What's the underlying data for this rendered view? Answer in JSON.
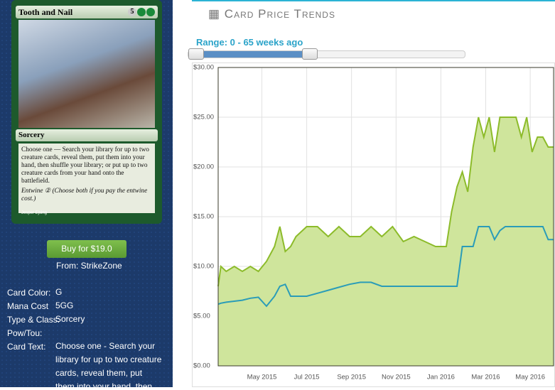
{
  "card": {
    "title": "Tooth and Nail",
    "mana_number": "5",
    "type_line": "Sorcery",
    "rules_text": "Choose one — Search your library for up to two creature cards, reveal them, put them into your hand, then shuffle your library; or put up to two creature cards from your hand onto the battlefield.",
    "entwine": "Entwine ② (Choose both if you pay the entwine cost.)",
    "artist": "Jesper Ejsing"
  },
  "buy_button": "Buy for $19.0",
  "seller": "From: StrikeZone",
  "details": [
    {
      "label": "Card Color:",
      "value": "G"
    },
    {
      "label": "Mana Cost",
      "value": "5GG"
    },
    {
      "label": "Type & Class:",
      "value": "Sorcery"
    },
    {
      "label": "Pow/Tou:",
      "value": ""
    },
    {
      "label": "Card Text:",
      "value": "Choose one - Search your library for up to two creature cards, reveal them, put them into your hand, then shuffle"
    }
  ],
  "header": {
    "title": "Card Price Trends"
  },
  "range_label": "Range: 0 - 65 weeks ago",
  "chart_data": {
    "type": "area-line",
    "x": [
      2015.17,
      2015.18,
      2015.2,
      2015.23,
      2015.26,
      2015.29,
      2015.32,
      2015.35,
      2015.38,
      2015.4,
      2015.42,
      2015.44,
      2015.46,
      2015.5,
      2015.54,
      2015.58,
      2015.62,
      2015.66,
      2015.7,
      2015.74,
      2015.78,
      2015.82,
      2015.86,
      2015.9,
      2015.94,
      2015.98,
      2016.02,
      2016.04,
      2016.06,
      2016.08,
      2016.1,
      2016.12,
      2016.14,
      2016.16,
      2016.18,
      2016.2,
      2016.22,
      2016.24,
      2016.26,
      2016.28,
      2016.3,
      2016.32,
      2016.34,
      2016.36,
      2016.38,
      2016.4,
      2016.42
    ],
    "series": [
      {
        "color": "#8cbb2a",
        "fill": "#cfe59c",
        "values": [
          8,
          10,
          9.5,
          10,
          9.5,
          10,
          9.5,
          10.5,
          12,
          14,
          11.5,
          12,
          13,
          14,
          14,
          13,
          14,
          13,
          13,
          14,
          13,
          14,
          12.5,
          13,
          12.5,
          12,
          12,
          15.5,
          18,
          19.5,
          17.5,
          22,
          25,
          23,
          25,
          21.5,
          25,
          25,
          25,
          25,
          23,
          25,
          21.5,
          23,
          23,
          22,
          22
        ]
      },
      {
        "color": "#2a9cb8",
        "values": [
          6.2,
          6.3,
          6.4,
          6.5,
          6.6,
          6.8,
          6.9,
          6.0,
          7.0,
          8.0,
          8.2,
          7.0,
          7.0,
          7.0,
          7.3,
          7.6,
          7.9,
          8.2,
          8.4,
          8.4,
          8.0,
          8.0,
          8.0,
          8.0,
          8.0,
          8.0,
          8.0,
          8.0,
          8.0,
          12.0,
          12.0,
          12.0,
          14.0,
          14.0,
          14.0,
          12.7,
          13.6,
          14.0,
          14.0,
          14.0,
          14.0,
          14.0,
          14.0,
          14.0,
          14.0,
          12.7,
          12.7
        ]
      }
    ],
    "xlim": [
      2015.17,
      2016.42
    ],
    "xticks": [
      {
        "value": 2015.333,
        "label": "May 2015"
      },
      {
        "value": 2015.5,
        "label": "Jul 2015"
      },
      {
        "value": 2015.667,
        "label": "Sep 2015"
      },
      {
        "value": 2015.833,
        "label": "Nov 2015"
      },
      {
        "value": 2016.0,
        "label": "Jan 2016"
      },
      {
        "value": 2016.167,
        "label": "Mar 2016"
      },
      {
        "value": 2016.333,
        "label": "May 2016"
      }
    ],
    "ylim": [
      0,
      30
    ],
    "yticks": [
      {
        "value": 0,
        "label": "$0.00"
      },
      {
        "value": 5,
        "label": "$5.00"
      },
      {
        "value": 10,
        "label": "$10.00"
      },
      {
        "value": 15,
        "label": "$15.00"
      },
      {
        "value": 20,
        "label": "$20.00"
      },
      {
        "value": 25,
        "label": "$25.00"
      },
      {
        "value": 30,
        "label": "$30.00"
      }
    ],
    "grid": true
  }
}
